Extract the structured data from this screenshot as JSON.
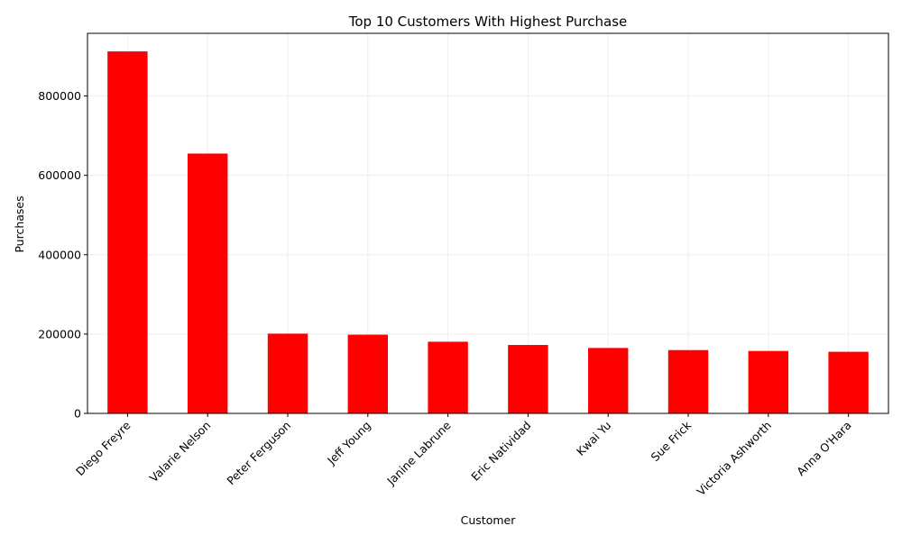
{
  "chart_data": {
    "type": "bar",
    "title": "Top 10 Customers With Highest Purchase",
    "xlabel": "Customer",
    "ylabel": "Purchases",
    "categories": [
      "Diego Freyre",
      "Valarie Nelson",
      "Peter Ferguson",
      "Jeff Young",
      "Janine Labrune",
      "Eric Natividad",
      "Kwai Yu",
      "Sue Frick",
      "Victoria Ashworth",
      "Anna O'Hara"
    ],
    "values": [
      912294,
      654860,
      200996,
      198430,
      180650,
      172460,
      164930,
      159570,
      157330,
      155330
    ],
    "ylim": [
      0,
      957909
    ],
    "yticks": [
      0,
      200000,
      400000,
      600000,
      800000
    ],
    "ytick_labels": [
      "0",
      "200000",
      "400000",
      "600000",
      "800000"
    ],
    "grid": true,
    "legend": "none",
    "colors": {
      "bar": "#ff0000",
      "grid": "#eeeeee",
      "axis": "#000000"
    }
  }
}
